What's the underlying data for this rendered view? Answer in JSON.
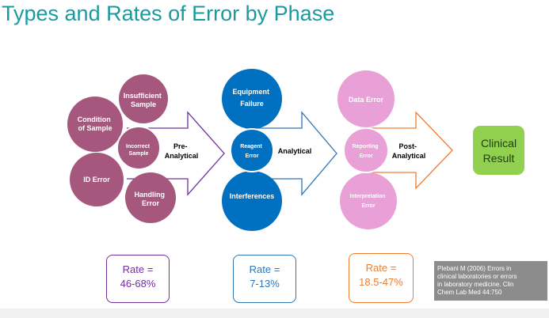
{
  "title": "Types and Rates of Error by Phase",
  "colors": {
    "title": "#1a9aa0",
    "pre_circle": "#a5577e",
    "pre_outline": "#7030a0",
    "analytical_circle": "#0070c0",
    "analytical_outline": "#2e75b6",
    "post_circle": "#e9a0d6",
    "post_outline": "#ed7d31",
    "result_fill": "#92d050"
  },
  "phases": {
    "pre_analytical": {
      "arrow_label": [
        "Pre-",
        "Analytical"
      ],
      "circles": {
        "insufficient_sample": [
          "Insufficient",
          "Sample"
        ],
        "condition_of_sample": [
          "Condition",
          "of Sample"
        ],
        "incorrect_sample": [
          "Incorrect",
          "Sample"
        ],
        "id_error": [
          "ID Error"
        ],
        "handling_error": [
          "Handling",
          "Error"
        ]
      },
      "rate": [
        "Rate =",
        "46-68%"
      ]
    },
    "analytical": {
      "arrow_label": [
        "Analytical"
      ],
      "circles": {
        "equipment_failure": [
          "Equipment",
          "Failure"
        ],
        "reagent_error": [
          "Reagent",
          "Error"
        ],
        "interferences": [
          "Interferences"
        ]
      },
      "rate": [
        "Rate =",
        "7-13%"
      ]
    },
    "post_analytical": {
      "arrow_label": [
        "Post-",
        "Analytical"
      ],
      "circles": {
        "data_error": [
          "Data Error"
        ],
        "reporting_error": [
          "Reporting",
          "Error"
        ],
        "interpretation_error": [
          "Interpretation",
          "Error"
        ]
      },
      "rate": [
        "Rate =",
        "18.5-47%"
      ]
    }
  },
  "result": [
    "Clinical",
    "Result"
  ],
  "citation": [
    "Plebani M (2006) Errors in",
    "clinical laboratories or errors",
    "in laboratory medicine. Clin",
    "Chem Lab Med 44:750"
  ]
}
